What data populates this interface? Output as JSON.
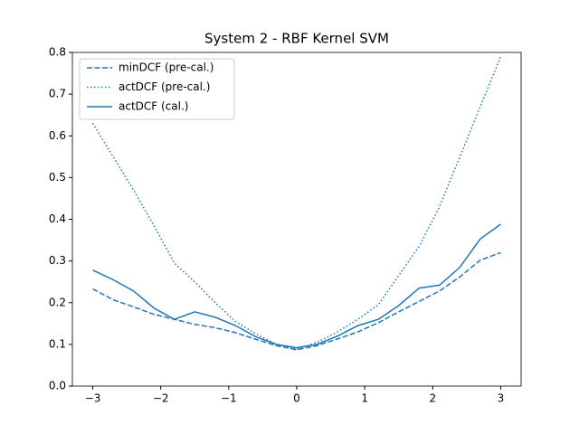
{
  "chart_data": {
    "type": "line",
    "title": "System 2 - RBF Kernel SVM",
    "x": [
      -3,
      -2.7,
      -2.4,
      -2.1,
      -1.8,
      -1.5,
      -1.2,
      -0.9,
      -0.6,
      -0.3,
      0,
      0.3,
      0.6,
      0.9,
      1.2,
      1.5,
      1.8,
      2.1,
      2.4,
      2.7,
      3
    ],
    "series": [
      {
        "name": "minDCF (pre-cal.)",
        "color": "#1f77b4",
        "style": "dashed",
        "values": [
          0.233,
          0.207,
          0.19,
          0.172,
          0.16,
          0.148,
          0.14,
          0.128,
          0.112,
          0.097,
          0.087,
          0.097,
          0.113,
          0.13,
          0.152,
          0.178,
          0.203,
          0.228,
          0.262,
          0.302,
          0.32
        ]
      },
      {
        "name": "actDCF (pre-cal.)",
        "color": "#1f77b4",
        "style": "dotted",
        "values": [
          0.63,
          0.55,
          0.47,
          0.385,
          0.295,
          0.25,
          0.2,
          0.155,
          0.125,
          0.1,
          0.088,
          0.105,
          0.13,
          0.16,
          0.195,
          0.265,
          0.335,
          0.43,
          0.55,
          0.67,
          0.79
        ]
      },
      {
        "name": "actDCF (cal.)",
        "color": "#1f77b4",
        "style": "solid",
        "values": [
          0.278,
          0.255,
          0.228,
          0.187,
          0.16,
          0.178,
          0.165,
          0.145,
          0.118,
          0.1,
          0.092,
          0.1,
          0.12,
          0.145,
          0.16,
          0.193,
          0.235,
          0.242,
          0.285,
          0.353,
          0.388
        ]
      }
    ],
    "xlim": [
      -3.3,
      3.3
    ],
    "xticks": [
      {
        "value": -3,
        "label": "−3"
      },
      {
        "value": -2,
        "label": "−2"
      },
      {
        "value": -1,
        "label": "−1"
      },
      0,
      1,
      2,
      3
    ],
    "ylim": [
      0,
      0.8
    ],
    "yticks": [
      {
        "value": 0,
        "label": "0.0"
      },
      0.1,
      0.2,
      0.3,
      0.4,
      0.5,
      0.6,
      0.7,
      0.8
    ],
    "legend": "upper left"
  }
}
